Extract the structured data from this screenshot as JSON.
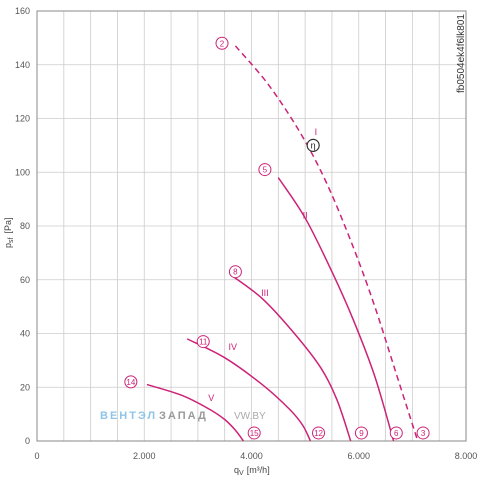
{
  "chart_data": {
    "type": "line",
    "xlabel": "q",
    "xlabel_sub": "V",
    "xlabel_unit": "[m³/h]",
    "ylabel": "p",
    "ylabel_sub": "sf",
    "ylabel_unit": "[Pa]",
    "xlim": [
      0,
      8000
    ],
    "ylim": [
      0,
      160
    ],
    "x_ticks": [
      0,
      2000,
      4000,
      6000,
      8000
    ],
    "x_tick_labels": [
      "0",
      "2.000",
      "4.000",
      "6.000",
      "8.000"
    ],
    "y_ticks": [
      0,
      20,
      40,
      60,
      80,
      100,
      120,
      140,
      160
    ],
    "y_tick_labels": [
      "0",
      "20",
      "40",
      "60",
      "80",
      "100",
      "120",
      "140",
      "160"
    ],
    "grid": true,
    "x_grid_step": 500,
    "y_grid_step": 20,
    "series": [
      {
        "name": "I",
        "dashed": true,
        "x": [
          3700,
          4300,
          4900,
          5400,
          5900,
          6300,
          6700,
          7100
        ],
        "y": [
          147,
          133,
          115,
          96,
          72,
          50,
          25,
          0
        ]
      },
      {
        "name": "II",
        "dashed": false,
        "x": [
          4500,
          5000,
          5500,
          5900,
          6300,
          6650
        ],
        "y": [
          98,
          83,
          63,
          45,
          24,
          0
        ]
      },
      {
        "name": "III",
        "dashed": false,
        "x": [
          3600,
          4200,
          4800,
          5300,
          5600,
          5850
        ],
        "y": [
          62,
          53,
          40,
          27,
          15,
          0
        ]
      },
      {
        "name": "IV",
        "dashed": false,
        "x": [
          2800,
          3500,
          4200,
          4700,
          4950,
          5100
        ],
        "y": [
          38,
          31,
          21,
          12,
          6,
          0
        ]
      },
      {
        "name": "V",
        "dashed": false,
        "x": [
          2050,
          2700,
          3200,
          3500,
          3700,
          3850
        ],
        "y": [
          21,
          17,
          12,
          8,
          4,
          0
        ]
      }
    ],
    "curve_labels": [
      {
        "text": "I",
        "x": 5200,
        "y": 115
      },
      {
        "text": "II",
        "x": 5000,
        "y": 84
      },
      {
        "text": "III",
        "x": 4250,
        "y": 55
      },
      {
        "text": "IV",
        "x": 3650,
        "y": 35
      },
      {
        "text": "V",
        "x": 3250,
        "y": 16
      }
    ],
    "markers": [
      {
        "text": "2",
        "x": 3450,
        "y": 148
      },
      {
        "text": "5",
        "x": 4250,
        "y": 101
      },
      {
        "text": "8",
        "x": 3700,
        "y": 63
      },
      {
        "text": "11",
        "x": 3100,
        "y": 37
      },
      {
        "text": "14",
        "x": 1750,
        "y": 22
      },
      {
        "text": "15",
        "x": 4050,
        "y": 3
      },
      {
        "text": "12",
        "x": 5250,
        "y": 3
      },
      {
        "text": "9",
        "x": 6050,
        "y": 3
      },
      {
        "text": "6",
        "x": 6700,
        "y": 3
      },
      {
        "text": "3",
        "x": 7200,
        "y": 3
      }
    ],
    "efficiency_marker": {
      "text": "η",
      "x": 5150,
      "y": 110
    },
    "code_label": "fb0504ek4f6lk801",
    "colors": {
      "curve": "#cc2277",
      "grid": "#cccccc",
      "axis": "#888888"
    }
  },
  "watermark": {
    "part1": "ВЕНТЭЛ",
    "part2": "ЗАПАД",
    "part3": "VW.BY"
  }
}
